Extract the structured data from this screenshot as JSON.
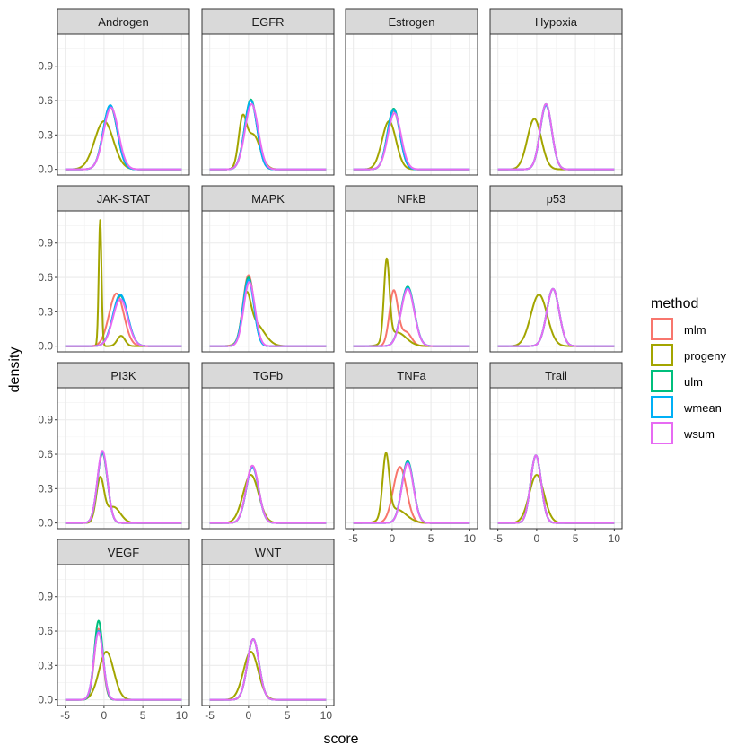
{
  "chart_data": {
    "type": "line",
    "subtype": "faceted density curves",
    "xlabel": "score",
    "ylabel": "density",
    "xlim": [
      -6,
      11
    ],
    "ylim": [
      -0.05,
      1.18
    ],
    "x_ticks": [
      -5,
      0,
      5,
      10
    ],
    "x_tick_labels": [
      "-5",
      "0",
      "5",
      "10"
    ],
    "y_ticks": [
      0,
      0.3,
      0.6,
      0.9
    ],
    "y_tick_labels": [
      "0.0",
      "0.3",
      "0.6",
      "0.9"
    ],
    "grid": true,
    "legend": {
      "title": "method",
      "position": "right",
      "items": [
        "mlm",
        "progeny",
        "ulm",
        "wmean",
        "wsum"
      ]
    },
    "colors": {
      "mlm": "#F8766D",
      "progeny": "#A3A500",
      "ulm": "#00BF7D",
      "wmean": "#00B0F6",
      "wsum": "#E76BF3"
    },
    "columns": 4,
    "x_axis_shown_on_panels": [
      "TNFa",
      "Trail",
      "VEGF",
      "WNT"
    ],
    "panels": [
      {
        "title": "Androgen",
        "curves": {
          "mlm": [
            [
              0.8,
              0.9,
              0.55
            ]
          ],
          "progeny": [
            [
              0.0,
              1.2,
              0.42
            ]
          ],
          "ulm": [
            [
              0.8,
              0.9,
              0.56
            ]
          ],
          "wmean": [
            [
              0.8,
              0.9,
              0.56
            ]
          ],
          "wsum": [
            [
              0.9,
              0.95,
              0.54
            ]
          ]
        }
      },
      {
        "title": "EGFR",
        "curves": {
          "mlm": [
            [
              0.3,
              0.8,
              0.6
            ]
          ],
          "progeny": [
            [
              -0.8,
              0.5,
              0.38
            ],
            [
              0.6,
              0.9,
              0.3
            ]
          ],
          "ulm": [
            [
              0.3,
              0.8,
              0.61
            ]
          ],
          "wmean": [
            [
              0.3,
              0.8,
              0.6
            ]
          ],
          "wsum": [
            [
              0.4,
              0.85,
              0.57
            ]
          ]
        }
      },
      {
        "title": "Estrogen",
        "curves": {
          "mlm": [
            [
              0.2,
              0.8,
              0.51
            ]
          ],
          "progeny": [
            [
              -0.4,
              0.9,
              0.42
            ]
          ],
          "ulm": [
            [
              0.2,
              0.8,
              0.53
            ]
          ],
          "wmean": [
            [
              0.2,
              0.8,
              0.52
            ]
          ],
          "wsum": [
            [
              0.3,
              0.85,
              0.49
            ]
          ]
        }
      },
      {
        "title": "Hypoxia",
        "curves": {
          "mlm": [
            [
              1.2,
              0.75,
              0.56
            ]
          ],
          "progeny": [
            [
              -0.3,
              0.9,
              0.44
            ]
          ],
          "ulm": [
            [
              1.2,
              0.75,
              0.57
            ]
          ],
          "wmean": [
            [
              1.2,
              0.75,
              0.56
            ]
          ],
          "wsum": [
            [
              1.2,
              0.75,
              0.57
            ]
          ]
        }
      },
      {
        "title": "JAK-STAT",
        "curves": {
          "mlm": [
            [
              1.6,
              0.95,
              0.46
            ]
          ],
          "progeny": [
            [
              -0.5,
              0.18,
              1.1
            ],
            [
              2.2,
              0.5,
              0.09
            ]
          ],
          "ulm": [
            [
              2.1,
              0.95,
              0.44
            ]
          ],
          "wmean": [
            [
              2.1,
              0.95,
              0.45
            ]
          ],
          "wsum": [
            [
              2.1,
              0.95,
              0.41
            ]
          ]
        }
      },
      {
        "title": "MAPK",
        "curves": {
          "mlm": [
            [
              0.0,
              0.7,
              0.62
            ]
          ],
          "progeny": [
            [
              -0.3,
              0.55,
              0.34
            ],
            [
              0.8,
              1.2,
              0.2
            ]
          ],
          "ulm": [
            [
              0.0,
              0.7,
              0.6
            ]
          ],
          "wmean": [
            [
              0.0,
              0.7,
              0.58
            ]
          ],
          "wsum": [
            [
              0.1,
              0.72,
              0.56
            ]
          ]
        }
      },
      {
        "title": "NFkB",
        "curves": {
          "mlm": [
            [
              0.2,
              0.55,
              0.48
            ],
            [
              1.8,
              0.7,
              0.12
            ]
          ],
          "progeny": [
            [
              -0.7,
              0.35,
              0.7
            ],
            [
              0.6,
              1.2,
              0.12
            ]
          ],
          "ulm": [
            [
              2.0,
              0.85,
              0.52
            ]
          ],
          "wmean": [
            [
              2.0,
              0.85,
              0.51
            ]
          ],
          "wsum": [
            [
              2.0,
              0.85,
              0.5
            ]
          ]
        }
      },
      {
        "title": "p53",
        "curves": {
          "mlm": [
            [
              2.1,
              0.8,
              0.5
            ]
          ],
          "progeny": [
            [
              0.3,
              1.05,
              0.45
            ]
          ],
          "ulm": [
            [
              2.1,
              0.8,
              0.5
            ]
          ],
          "wmean": [
            [
              2.1,
              0.8,
              0.5
            ]
          ],
          "wsum": [
            [
              2.1,
              0.8,
              0.5
            ]
          ]
        }
      },
      {
        "title": "PI3K",
        "curves": {
          "mlm": [
            [
              -0.2,
              0.65,
              0.61
            ]
          ],
          "progeny": [
            [
              -0.5,
              0.5,
              0.38
            ],
            [
              1.2,
              0.9,
              0.14
            ]
          ],
          "ulm": [
            [
              -0.2,
              0.65,
              0.61
            ]
          ],
          "wmean": [
            [
              -0.2,
              0.65,
              0.62
            ]
          ],
          "wsum": [
            [
              -0.2,
              0.65,
              0.63
            ]
          ]
        }
      },
      {
        "title": "TGFb",
        "curves": {
          "mlm": [
            [
              0.5,
              0.8,
              0.5
            ]
          ],
          "progeny": [
            [
              0.3,
              1.0,
              0.42
            ]
          ],
          "ulm": [
            [
              0.5,
              0.8,
              0.49
            ]
          ],
          "wmean": [
            [
              0.5,
              0.8,
              0.49
            ]
          ],
          "wsum": [
            [
              0.5,
              0.8,
              0.5
            ]
          ]
        }
      },
      {
        "title": "TNFa",
        "curves": {
          "mlm": [
            [
              1.0,
              0.85,
              0.49
            ]
          ],
          "progeny": [
            [
              -0.8,
              0.42,
              0.54
            ],
            [
              0.5,
              1.3,
              0.12
            ]
          ],
          "ulm": [
            [
              2.0,
              0.75,
              0.54
            ]
          ],
          "wmean": [
            [
              2.0,
              0.75,
              0.53
            ]
          ],
          "wsum": [
            [
              2.0,
              0.75,
              0.52
            ]
          ]
        }
      },
      {
        "title": "Trail",
        "curves": {
          "mlm": [
            [
              -0.1,
              0.68,
              0.59
            ]
          ],
          "progeny": [
            [
              0.0,
              0.95,
              0.42
            ]
          ],
          "ulm": [
            [
              -0.1,
              0.68,
              0.59
            ]
          ],
          "wmean": [
            [
              -0.1,
              0.68,
              0.59
            ]
          ],
          "wsum": [
            [
              -0.1,
              0.68,
              0.59
            ]
          ]
        }
      },
      {
        "title": "VEGF",
        "curves": {
          "mlm": [
            [
              -0.7,
              0.55,
              0.62
            ]
          ],
          "progeny": [
            [
              0.3,
              0.95,
              0.42
            ]
          ],
          "ulm": [
            [
              -0.7,
              0.55,
              0.69
            ]
          ],
          "wmean": [
            [
              -0.7,
              0.6,
              0.6
            ]
          ],
          "wsum": [
            [
              -0.7,
              0.6,
              0.59
            ]
          ]
        }
      },
      {
        "title": "WNT",
        "curves": {
          "mlm": [
            [
              0.6,
              0.75,
              0.53
            ]
          ],
          "progeny": [
            [
              0.3,
              0.95,
              0.42
            ]
          ],
          "ulm": [
            [
              0.6,
              0.75,
              0.53
            ]
          ],
          "wmean": [
            [
              0.6,
              0.75,
              0.53
            ]
          ],
          "wsum": [
            [
              0.6,
              0.75,
              0.53
            ]
          ]
        }
      }
    ]
  }
}
